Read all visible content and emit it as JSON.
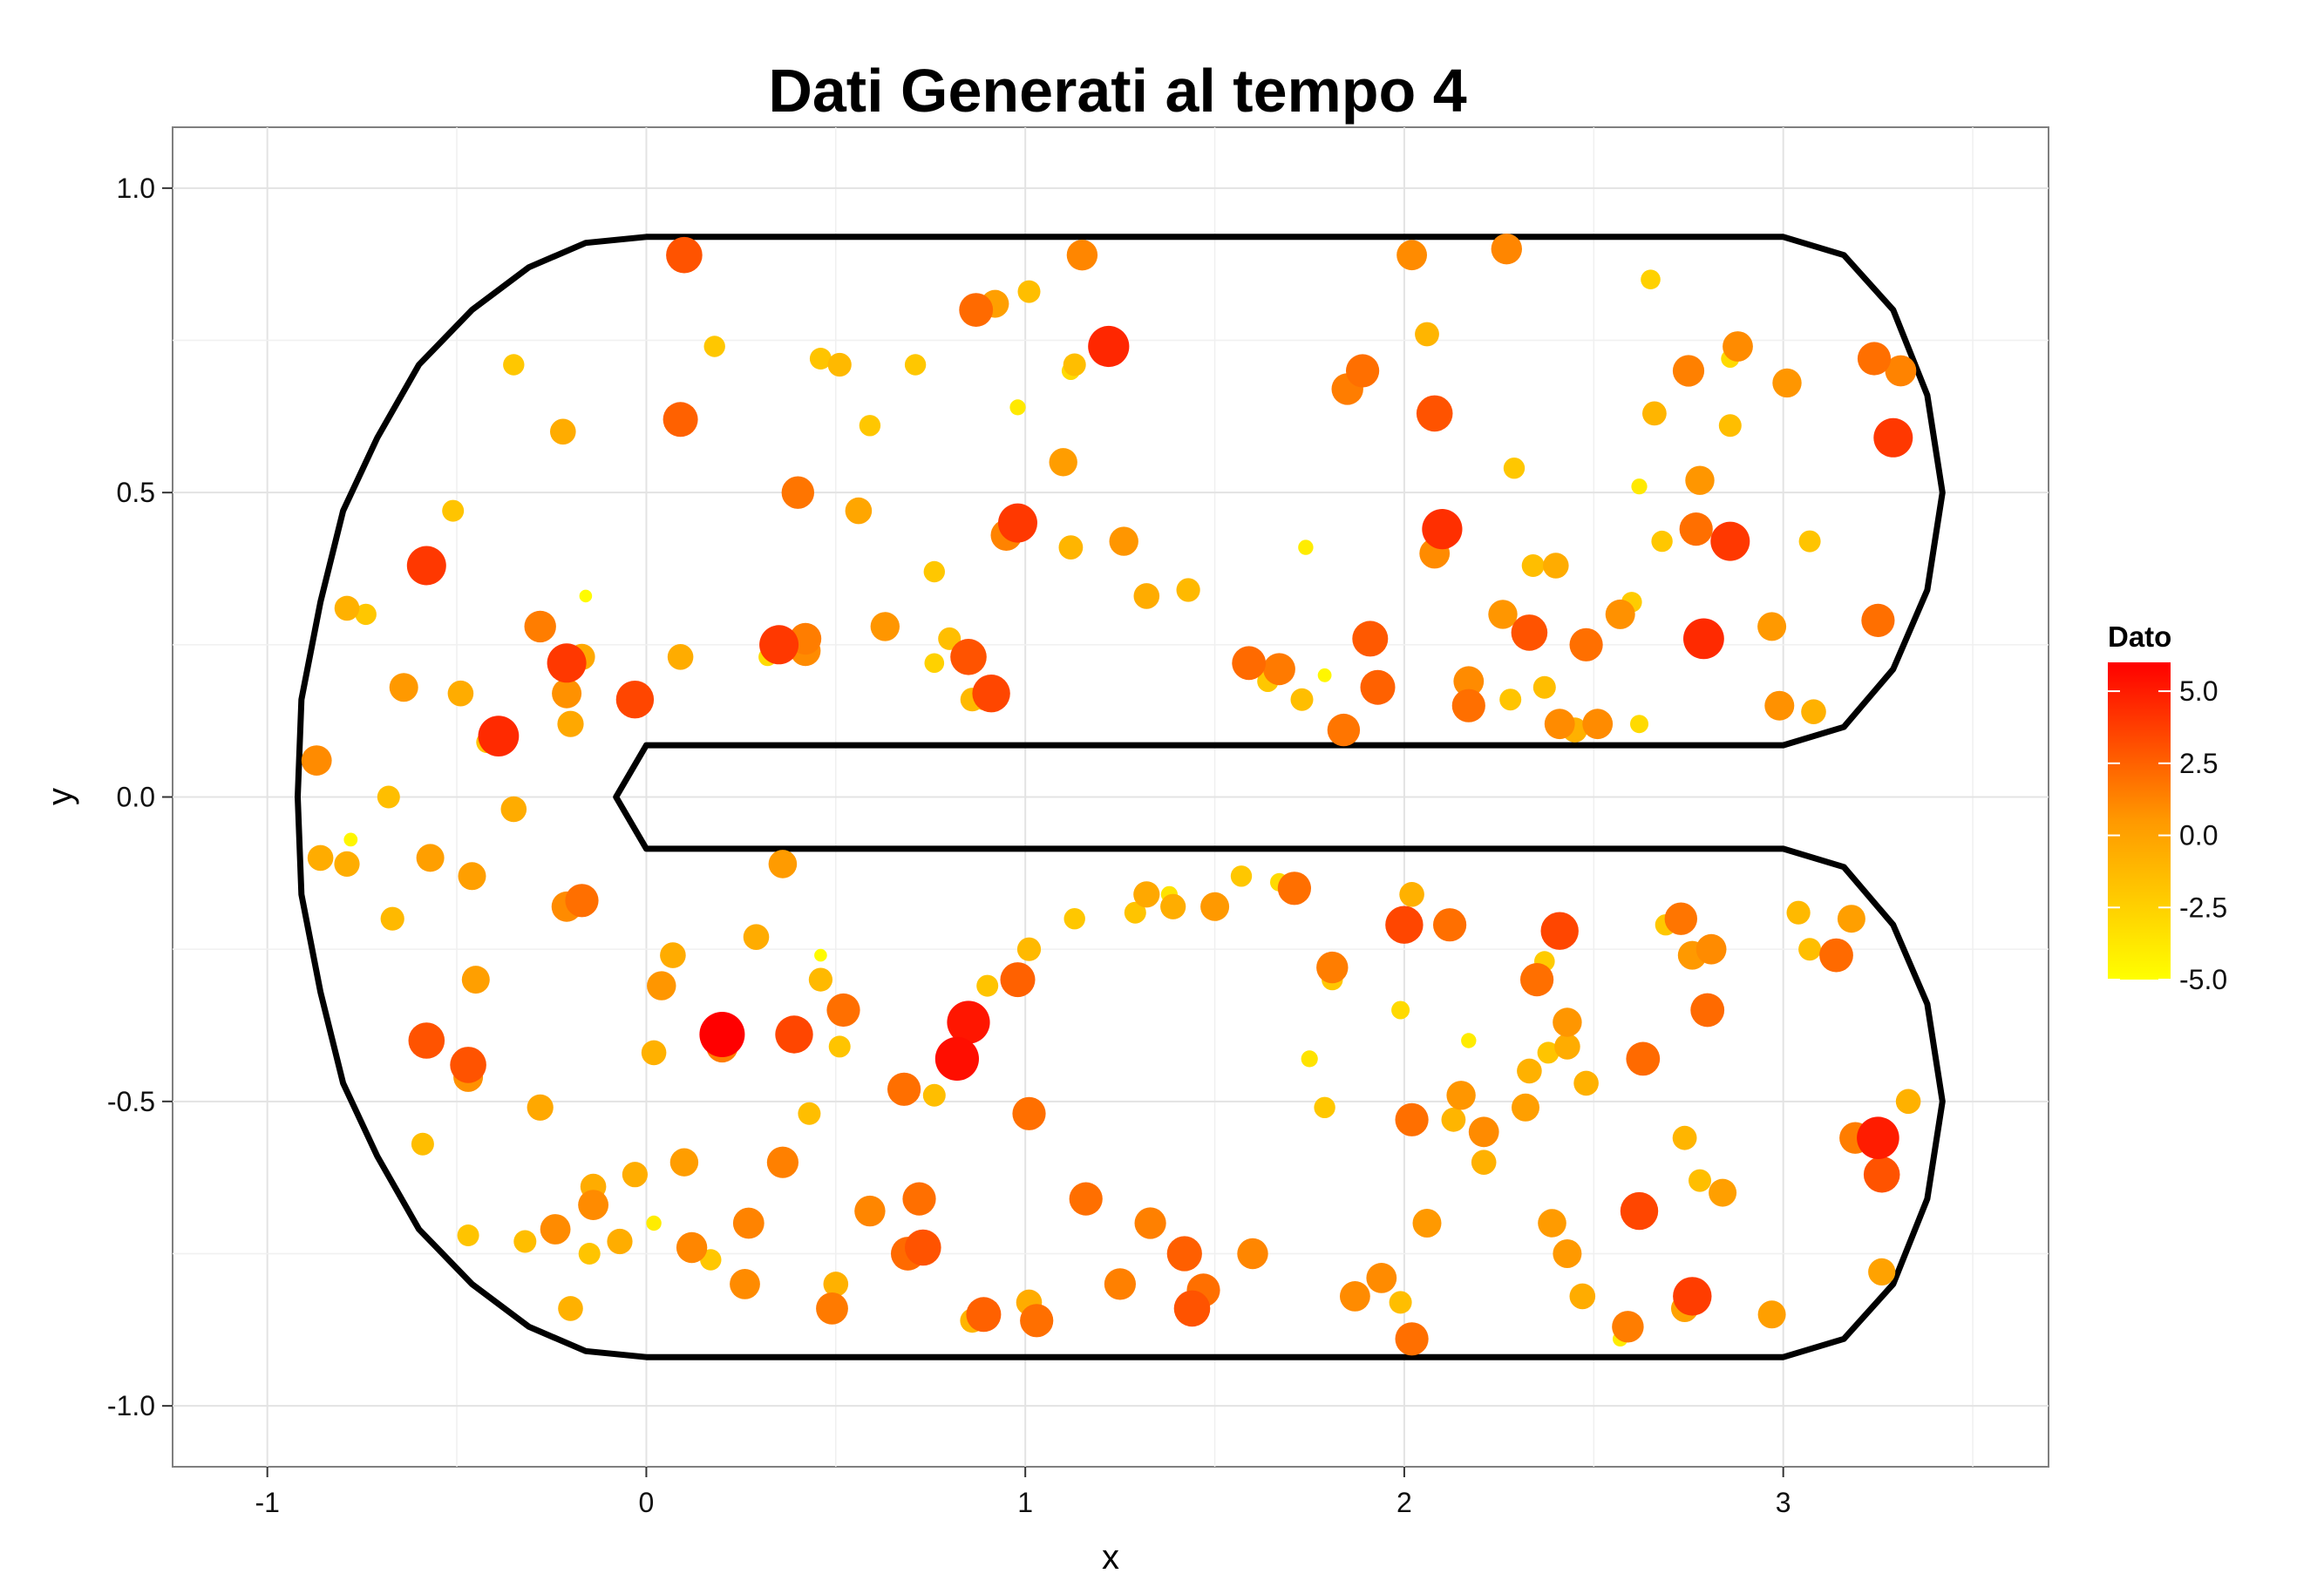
{
  "chart_data": {
    "type": "scatter",
    "title": "Dati Generati al tempo 4",
    "xlabel": "x",
    "ylabel": "y",
    "xlim": [
      -1.25,
      3.7
    ],
    "ylim": [
      -1.1,
      1.1
    ],
    "x_ticks": [
      -1,
      0,
      1,
      2,
      3
    ],
    "x_tick_labels": [
      "-1",
      "0",
      "1",
      "2",
      "3"
    ],
    "y_ticks": [
      -1.0,
      -0.5,
      0.0,
      0.5,
      1.0
    ],
    "y_tick_labels": [
      "-1.0",
      "-0.5",
      "0.0",
      "0.5",
      "1.0"
    ],
    "grid": true,
    "legend": {
      "title": "Dato",
      "position": "right",
      "range": [
        -5.0,
        6.0
      ],
      "ticks": [
        5.0,
        2.5,
        0.0,
        -2.5,
        -5.0
      ],
      "tick_labels": [
        "5.0",
        "2.5",
        "0.0",
        "-2.5",
        "-5.0"
      ],
      "colors": {
        "low": "#FFFF00",
        "mid": "#FF9900",
        "high": "#FF0000"
      }
    },
    "boundary": [
      [
        0,
        0.92
      ],
      [
        3,
        0.92
      ],
      [
        3.16,
        0.89
      ],
      [
        3.29,
        0.8
      ],
      [
        3.38,
        0.66
      ],
      [
        3.42,
        0.5
      ],
      [
        3.38,
        0.34
      ],
      [
        3.29,
        0.21
      ],
      [
        3.16,
        0.115
      ],
      [
        3,
        0.085
      ],
      [
        0,
        0.085
      ],
      [
        -0.08,
        0
      ],
      [
        0,
        -0.085
      ],
      [
        3,
        -0.085
      ],
      [
        3.16,
        -0.115
      ],
      [
        3.29,
        -0.21
      ],
      [
        3.38,
        -0.34
      ],
      [
        3.42,
        -0.5
      ],
      [
        3.38,
        -0.66
      ],
      [
        3.29,
        -0.8
      ],
      [
        3.16,
        -0.89
      ],
      [
        3,
        -0.92
      ],
      [
        0,
        -0.92
      ],
      [
        -0.16,
        -0.91
      ],
      [
        -0.31,
        -0.87
      ],
      [
        -0.46,
        -0.8
      ],
      [
        -0.6,
        -0.71
      ],
      [
        -0.71,
        -0.59
      ],
      [
        -0.8,
        -0.47
      ],
      [
        -0.86,
        -0.32
      ],
      [
        -0.91,
        -0.16
      ],
      [
        -0.92,
        0
      ],
      [
        -0.91,
        0.16
      ],
      [
        -0.86,
        0.32
      ],
      [
        -0.8,
        0.47
      ],
      [
        -0.71,
        0.59
      ],
      [
        -0.6,
        0.71
      ],
      [
        -0.46,
        0.8
      ],
      [
        -0.31,
        0.87
      ],
      [
        -0.16,
        0.91
      ],
      [
        0,
        0.92
      ]
    ],
    "points": [
      [
        0.1,
        0.89,
        3.0
      ],
      [
        1.22,
        0.74,
        4.6
      ],
      [
        0.87,
        0.8,
        2.2
      ],
      [
        0.92,
        0.81,
        0.2
      ],
      [
        1.01,
        0.83,
        -1.5
      ],
      [
        1.15,
        0.89,
        1.2
      ],
      [
        2.02,
        0.89,
        1.0
      ],
      [
        2.27,
        0.9,
        1.2
      ],
      [
        2.65,
        0.85,
        -2.5
      ],
      [
        2.06,
        0.76,
        -1.0
      ],
      [
        0.18,
        0.74,
        -2.0
      ],
      [
        0.46,
        0.72,
        -1.8
      ],
      [
        0.51,
        0.71,
        -1.2
      ],
      [
        0.71,
        0.71,
        -2.0
      ],
      [
        1.13,
        0.71,
        -1.5
      ],
      [
        1.12,
        0.7,
        -3.0
      ],
      [
        0.98,
        0.64,
        -3.8
      ],
      [
        -0.35,
        0.71,
        -2.0
      ],
      [
        -0.22,
        0.6,
        -0.5
      ],
      [
        0.09,
        0.62,
        2.5
      ],
      [
        0.59,
        0.61,
        -2.0
      ],
      [
        1.1,
        0.55,
        0.3
      ],
      [
        1.89,
        0.7,
        2.0
      ],
      [
        1.85,
        0.67,
        1.5
      ],
      [
        2.08,
        0.63,
        3.0
      ],
      [
        2.29,
        0.54,
        -2.0
      ],
      [
        2.75,
        0.7,
        1.4
      ],
      [
        2.88,
        0.74,
        1.0
      ],
      [
        2.86,
        0.72,
        -3.0
      ],
      [
        2.66,
        0.63,
        -1.0
      ],
      [
        2.86,
        0.61,
        -1.5
      ],
      [
        3.01,
        0.68,
        0.6
      ],
      [
        3.24,
        0.72,
        2.0
      ],
      [
        3.29,
        0.59,
        4.0
      ],
      [
        3.31,
        0.7,
        1.3
      ],
      [
        2.62,
        0.51,
        -3.8
      ],
      [
        2.78,
        0.52,
        0.6
      ],
      [
        2.68,
        0.42,
        -2.0
      ],
      [
        2.77,
        0.44,
        2.0
      ],
      [
        2.86,
        0.42,
        4.0
      ],
      [
        3.07,
        0.42,
        -1.8
      ],
      [
        0.4,
        0.5,
        1.8
      ],
      [
        0.56,
        0.47,
        -0.2
      ],
      [
        0.98,
        0.45,
        4.0
      ],
      [
        0.95,
        0.43,
        1.3
      ],
      [
        1.12,
        0.41,
        -1.0
      ],
      [
        1.26,
        0.42,
        0.6
      ],
      [
        -0.51,
        0.47,
        -1.8
      ],
      [
        -0.58,
        0.38,
        4.0
      ],
      [
        -0.16,
        0.33,
        -4.8
      ],
      [
        -0.79,
        0.31,
        -0.8
      ],
      [
        -0.74,
        0.3,
        -2.0
      ],
      [
        -0.28,
        0.28,
        1.5
      ],
      [
        0.35,
        0.25,
        4.0
      ],
      [
        0.42,
        0.26,
        1.5
      ],
      [
        0.42,
        0.24,
        1.0
      ],
      [
        0.32,
        0.23,
        -3.0
      ],
      [
        0.63,
        0.28,
        0.6
      ],
      [
        0.76,
        0.37,
        -2.0
      ],
      [
        0.8,
        0.26,
        -1.5
      ],
      [
        0.76,
        0.22,
        -2.5
      ],
      [
        0.85,
        0.23,
        3.0
      ],
      [
        0.91,
        0.17,
        3.5
      ],
      [
        0.86,
        0.16,
        -1.2
      ],
      [
        0.89,
        0.16,
        -2.0
      ],
      [
        1.32,
        0.33,
        -0.5
      ],
      [
        1.43,
        0.34,
        -1.2
      ],
      [
        1.74,
        0.41,
        -4.0
      ],
      [
        1.59,
        0.22,
        2.2
      ],
      [
        1.67,
        0.21,
        1.6
      ],
      [
        1.64,
        0.19,
        -2.0
      ],
      [
        1.73,
        0.16,
        -1.5
      ],
      [
        1.79,
        0.2,
        -4.5
      ],
      [
        1.91,
        0.26,
        2.8
      ],
      [
        1.84,
        0.11,
        1.8
      ],
      [
        1.93,
        0.18,
        2.5
      ],
      [
        2.1,
        0.44,
        4.3
      ],
      [
        2.08,
        0.4,
        1.0
      ],
      [
        2.17,
        0.19,
        1.0
      ],
      [
        2.17,
        0.15,
        2.0
      ],
      [
        2.26,
        0.3,
        0.6
      ],
      [
        2.33,
        0.27,
        3.0
      ],
      [
        2.34,
        0.38,
        -1.5
      ],
      [
        2.4,
        0.38,
        -0.5
      ],
      [
        2.28,
        0.16,
        -1.8
      ],
      [
        2.37,
        0.18,
        -1.5
      ],
      [
        2.41,
        0.12,
        1.0
      ],
      [
        2.45,
        0.11,
        -0.8
      ],
      [
        2.48,
        0.25,
        2.0
      ],
      [
        2.51,
        0.12,
        1.0
      ],
      [
        2.57,
        0.3,
        0.8
      ],
      [
        2.6,
        0.32,
        -2.2
      ],
      [
        2.62,
        0.12,
        -3.0
      ],
      [
        2.79,
        0.26,
        4.5
      ],
      [
        2.97,
        0.28,
        0.5
      ],
      [
        2.99,
        0.15,
        0.8
      ],
      [
        3.08,
        0.14,
        -0.8
      ],
      [
        3.25,
        0.29,
        2.0
      ],
      [
        -0.39,
        0.1,
        4.5
      ],
      [
        -0.42,
        0.09,
        -1.8
      ],
      [
        -0.49,
        0.17,
        -0.5
      ],
      [
        -0.21,
        0.22,
        4.0
      ],
      [
        -0.17,
        0.23,
        -0.3
      ],
      [
        -0.21,
        0.17,
        0.8
      ],
      [
        -0.2,
        0.12,
        -0.3
      ],
      [
        -0.03,
        0.16,
        3.5
      ],
      [
        0.09,
        0.23,
        -0.5
      ],
      [
        -0.64,
        0.18,
        0.5
      ],
      [
        -0.87,
        0.06,
        1.0
      ],
      [
        -0.35,
        -0.02,
        -0.5
      ],
      [
        -0.68,
        0.0,
        -1.5
      ],
      [
        -0.78,
        -0.07,
        -4.5
      ],
      [
        -0.86,
        -0.1,
        -0.5
      ],
      [
        -0.79,
        -0.11,
        -0.6
      ],
      [
        -0.57,
        -0.1,
        0.2
      ],
      [
        -0.46,
        -0.13,
        0.2
      ],
      [
        -0.67,
        -0.2,
        -1.2
      ],
      [
        -0.17,
        -0.17,
        2.0
      ],
      [
        -0.21,
        -0.18,
        1.0
      ],
      [
        0.36,
        -0.11,
        0.4
      ],
      [
        -0.45,
        -0.3,
        0.2
      ],
      [
        -0.58,
        -0.4,
        3.0
      ],
      [
        -0.47,
        -0.44,
        3.0
      ],
      [
        -0.47,
        -0.46,
        0.8
      ],
      [
        -0.59,
        -0.57,
        -1.5
      ],
      [
        -0.28,
        -0.51,
        -0.3
      ],
      [
        0.07,
        -0.26,
        -0.5
      ],
      [
        0.04,
        -0.31,
        0.6
      ],
      [
        0.29,
        -0.23,
        -0.5
      ],
      [
        0.46,
        -0.26,
        -4.8
      ],
      [
        0.46,
        -0.3,
        -1.2
      ],
      [
        0.52,
        -0.35,
        2.0
      ],
      [
        0.51,
        -0.41,
        -1.8
      ],
      [
        0.2,
        -0.39,
        6.0
      ],
      [
        0.2,
        -0.41,
        1.5
      ],
      [
        0.39,
        -0.39,
        3.5
      ],
      [
        0.02,
        -0.42,
        -0.8
      ],
      [
        0.43,
        -0.52,
        -1.5
      ],
      [
        0.68,
        -0.48,
        2.0
      ],
      [
        0.76,
        -0.49,
        -1.5
      ],
      [
        0.82,
        -0.43,
        5.5
      ],
      [
        0.85,
        -0.37,
        5.2
      ],
      [
        0.9,
        -0.31,
        -1.8
      ],
      [
        0.98,
        -0.3,
        2.5
      ],
      [
        1.01,
        -0.52,
        2.0
      ],
      [
        1.01,
        -0.25,
        -1.2
      ],
      [
        1.13,
        -0.2,
        -2.0
      ],
      [
        1.32,
        -0.16,
        -0.3
      ],
      [
        1.29,
        -0.19,
        -1.8
      ],
      [
        1.38,
        -0.16,
        -3.5
      ],
      [
        1.39,
        -0.18,
        -0.6
      ],
      [
        1.5,
        -0.18,
        0.5
      ],
      [
        1.57,
        -0.13,
        -2.0
      ],
      [
        1.67,
        -0.14,
        -3.0
      ],
      [
        1.71,
        -0.15,
        2.0
      ],
      [
        1.75,
        -0.43,
        -3.5
      ],
      [
        1.81,
        -0.28,
        1.5
      ],
      [
        1.81,
        -0.3,
        -2.0
      ],
      [
        1.79,
        -0.51,
        -2.0
      ],
      [
        2.02,
        -0.16,
        -0.8
      ],
      [
        2.0,
        -0.21,
        3.5
      ],
      [
        1.99,
        -0.35,
        -3.0
      ],
      [
        2.02,
        -0.53,
        2.0
      ],
      [
        2.12,
        -0.21,
        2.0
      ],
      [
        2.17,
        -0.4,
        -4.0
      ],
      [
        2.15,
        -0.49,
        0.6
      ],
      [
        2.13,
        -0.53,
        -1.0
      ],
      [
        2.21,
        -0.55,
        1.0
      ],
      [
        2.21,
        -0.6,
        -0.8
      ],
      [
        2.33,
        -0.45,
        -0.8
      ],
      [
        2.32,
        -0.51,
        0.2
      ],
      [
        2.35,
        -0.3,
        2.0
      ],
      [
        2.37,
        -0.27,
        -2.2
      ],
      [
        2.38,
        -0.42,
        -1.8
      ],
      [
        2.43,
        -0.37,
        0.6
      ],
      [
        2.43,
        -0.41,
        -0.5
      ],
      [
        2.41,
        -0.22,
        3.5
      ],
      [
        2.48,
        -0.47,
        -0.8
      ],
      [
        2.69,
        -0.21,
        -2.0
      ],
      [
        2.73,
        -0.2,
        1.8
      ],
      [
        2.76,
        -0.26,
        0.5
      ],
      [
        2.81,
        -0.25,
        1.0
      ],
      [
        2.8,
        -0.35,
        2.2
      ],
      [
        2.74,
        -0.56,
        -1.0
      ],
      [
        2.63,
        -0.43,
        2.2
      ],
      [
        2.78,
        -0.63,
        -1.5
      ],
      [
        2.84,
        -0.65,
        0.2
      ],
      [
        3.04,
        -0.19,
        -1.2
      ],
      [
        3.07,
        -0.25,
        -1.5
      ],
      [
        3.14,
        -0.26,
        2.2
      ],
      [
        3.18,
        -0.2,
        0.2
      ],
      [
        3.33,
        -0.5,
        -0.8
      ],
      [
        3.25,
        -0.56,
        5.0
      ],
      [
        3.19,
        -0.56,
        1.5
      ],
      [
        3.26,
        -0.62,
        3.0
      ],
      [
        3.26,
        -0.78,
        0.0
      ],
      [
        2.97,
        -0.85,
        0.2
      ],
      [
        2.76,
        -0.82,
        3.8
      ],
      [
        2.74,
        -0.84,
        0.0
      ],
      [
        2.59,
        -0.87,
        1.5
      ],
      [
        2.57,
        -0.89,
        -4.0
      ],
      [
        2.62,
        -0.68,
        3.5
      ],
      [
        2.47,
        -0.82,
        -0.5
      ],
      [
        2.43,
        -0.75,
        0.5
      ],
      [
        2.39,
        -0.7,
        0.4
      ],
      [
        2.02,
        -0.89,
        2.0
      ],
      [
        1.99,
        -0.83,
        -1.5
      ],
      [
        1.94,
        -0.79,
        1.0
      ],
      [
        1.87,
        -0.82,
        1.0
      ],
      [
        2.06,
        -0.7,
        0.5
      ],
      [
        1.6,
        -0.75,
        1.2
      ],
      [
        1.47,
        -0.81,
        2.0
      ],
      [
        1.44,
        -0.84,
        3.0
      ],
      [
        1.42,
        -0.75,
        2.6
      ],
      [
        1.33,
        -0.7,
        1.4
      ],
      [
        1.25,
        -0.8,
        1.4
      ],
      [
        1.16,
        -0.66,
        2.0
      ],
      [
        1.03,
        -0.86,
        2.0
      ],
      [
        1.01,
        -0.83,
        -0.5
      ],
      [
        0.89,
        -0.85,
        2.5
      ],
      [
        0.86,
        -0.86,
        -1.0
      ],
      [
        0.73,
        -0.74,
        3.0
      ],
      [
        0.69,
        -0.75,
        2.2
      ],
      [
        0.72,
        -0.66,
        2.0
      ],
      [
        0.59,
        -0.68,
        1.2
      ],
      [
        0.5,
        -0.8,
        -0.8
      ],
      [
        0.49,
        -0.84,
        1.6
      ],
      [
        0.36,
        -0.6,
        1.4
      ],
      [
        0.27,
        -0.7,
        1.3
      ],
      [
        0.26,
        -0.8,
        1.0
      ],
      [
        0.17,
        -0.76,
        -2.0
      ],
      [
        0.12,
        -0.74,
        1.2
      ],
      [
        0.1,
        -0.6,
        0.3
      ],
      [
        0.02,
        -0.7,
        -4.0
      ],
      [
        -0.03,
        -0.62,
        -0.6
      ],
      [
        -0.07,
        -0.73,
        -0.6
      ],
      [
        -0.14,
        -0.64,
        -0.5
      ],
      [
        -0.14,
        -0.67,
        1.0
      ],
      [
        -0.15,
        -0.75,
        -1.8
      ],
      [
        -0.2,
        -0.84,
        -0.8
      ],
      [
        -0.24,
        -0.71,
        1.0
      ],
      [
        -0.32,
        -0.73,
        -1.5
      ],
      [
        -0.47,
        -0.72,
        -1.8
      ]
    ]
  }
}
